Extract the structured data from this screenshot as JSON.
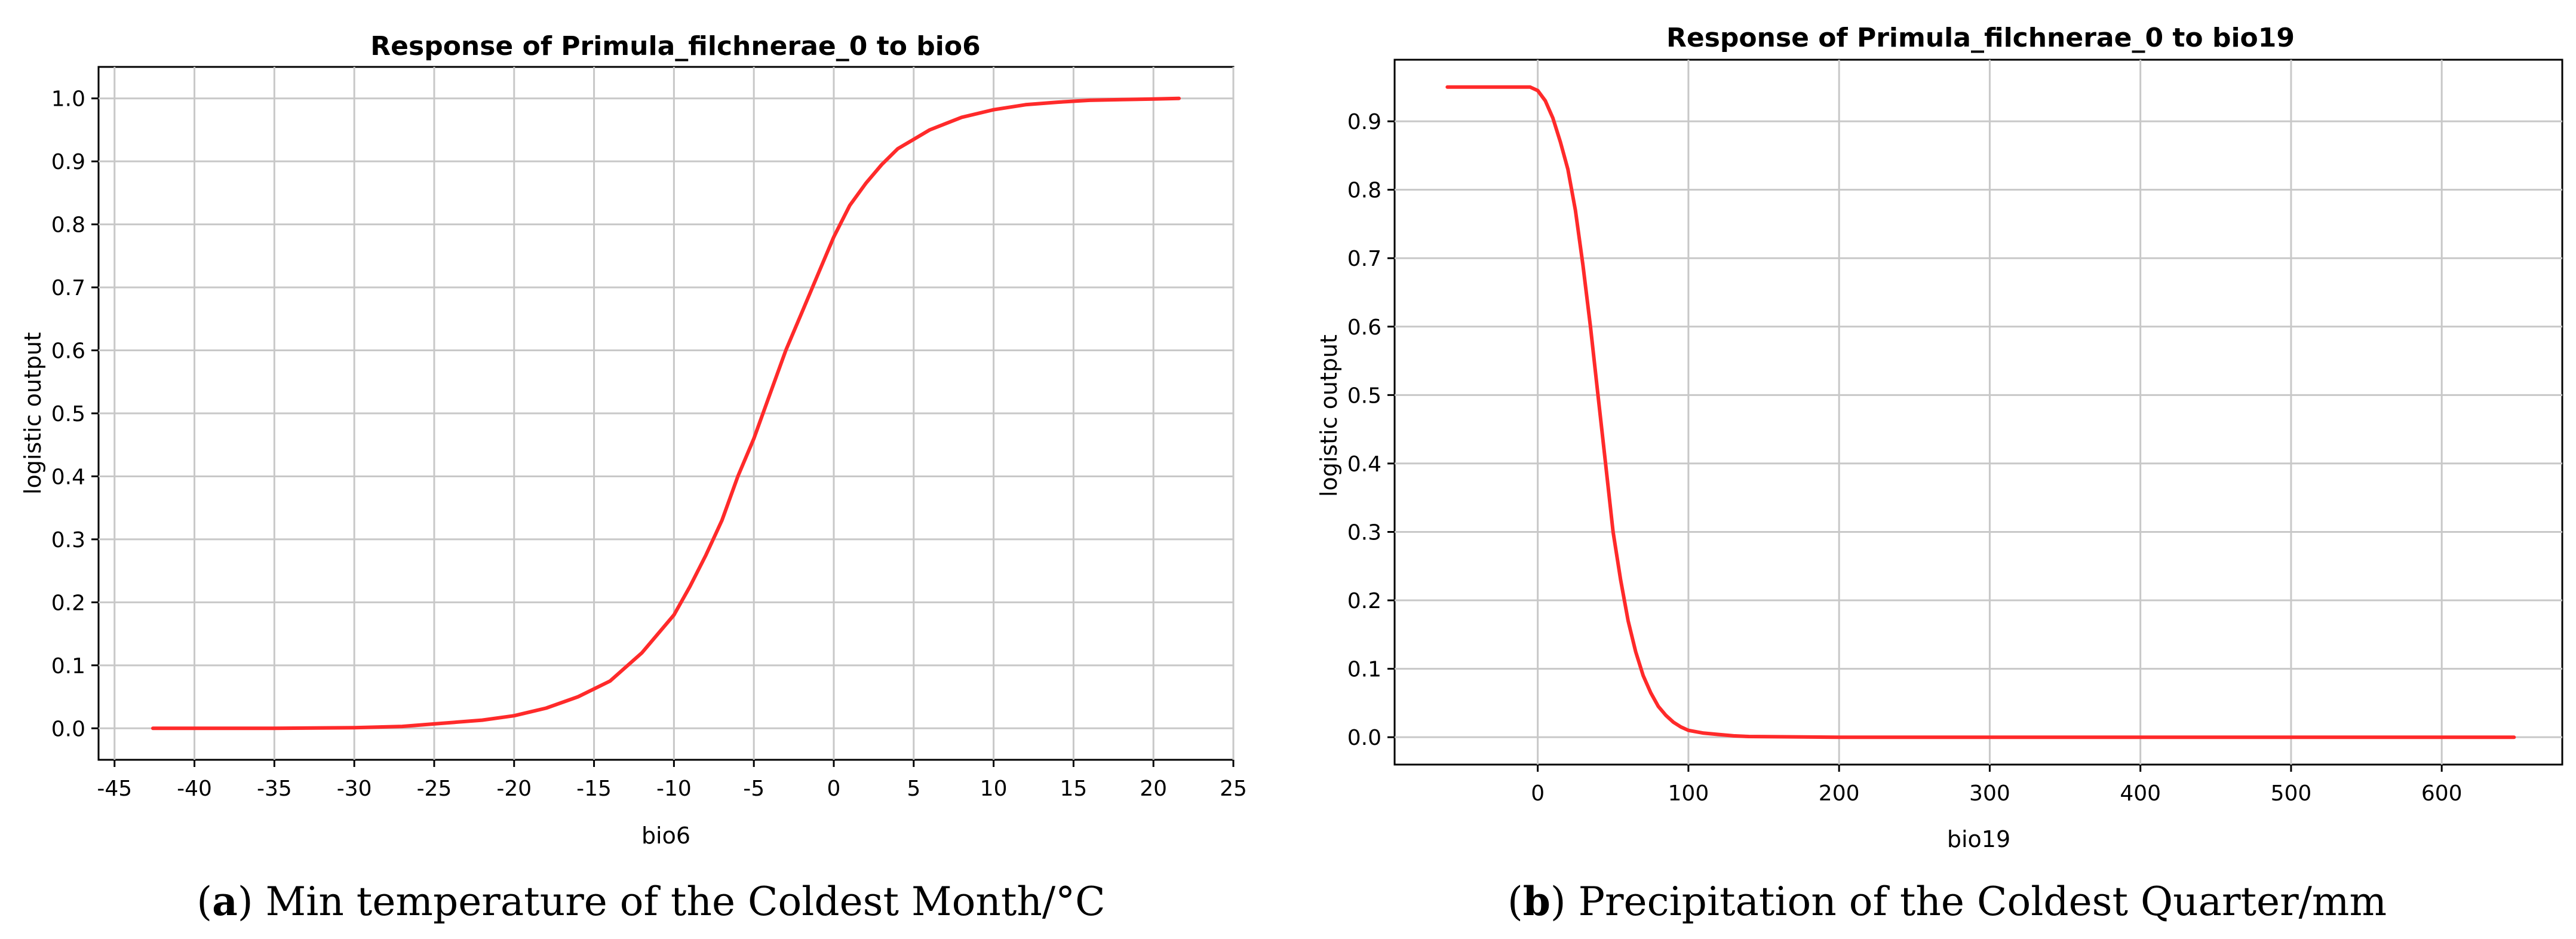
{
  "chart_data": [
    {
      "type": "line",
      "panel_label": "a",
      "caption": "Min temperature of the Coldest Month/°C",
      "title": "Response of Primula_filchnerae_0 to bio6",
      "xlabel": "bio6",
      "ylabel": "logistic output",
      "xlim": [
        -46,
        25
      ],
      "ylim": [
        -0.05,
        1.05
      ],
      "xticks": [
        -45,
        -40,
        -35,
        -30,
        -25,
        -20,
        -15,
        -10,
        -5,
        0,
        5,
        10,
        15,
        20,
        25
      ],
      "yticks": [
        0.0,
        0.1,
        0.2,
        0.3,
        0.4,
        0.5,
        0.6,
        0.7,
        0.8,
        0.9,
        1.0
      ],
      "ytick_decimals": 1,
      "grid": true,
      "line_color": "#ff2a2a",
      "series": [
        {
          "name": "response",
          "x": [
            -42.6,
            -35,
            -30,
            -27,
            -25,
            -22,
            -20,
            -18,
            -16,
            -14,
            -12,
            -10,
            -9,
            -8,
            -7,
            -6,
            -5,
            -4,
            -3,
            -2,
            -1,
            0,
            1,
            2,
            3,
            4,
            5,
            6,
            7,
            8,
            10,
            12,
            14,
            16,
            18,
            20,
            21.6
          ],
          "y": [
            0.0,
            0.0,
            0.001,
            0.003,
            0.007,
            0.013,
            0.02,
            0.032,
            0.05,
            0.075,
            0.12,
            0.18,
            0.225,
            0.275,
            0.33,
            0.4,
            0.46,
            0.53,
            0.6,
            0.66,
            0.72,
            0.78,
            0.83,
            0.865,
            0.895,
            0.92,
            0.935,
            0.95,
            0.96,
            0.97,
            0.982,
            0.99,
            0.994,
            0.997,
            0.998,
            0.999,
            1.0
          ]
        }
      ]
    },
    {
      "type": "line",
      "panel_label": "b",
      "caption": "Precipitation of the Coldest Quarter/mm",
      "title": "Response of Primula_filchnerae_0 to bio19",
      "xlabel": "bio19",
      "ylabel": "logistic output",
      "xlim": [
        -95,
        680
      ],
      "ylim": [
        -0.04,
        0.99
      ],
      "xticks": [
        0,
        100,
        200,
        300,
        400,
        500,
        600
      ],
      "yticks": [
        0.0,
        0.1,
        0.2,
        0.3,
        0.4,
        0.5,
        0.6,
        0.7,
        0.8,
        0.9
      ],
      "ytick_decimals": 1,
      "grid": true,
      "line_color": "#ff2a2a",
      "series": [
        {
          "name": "response",
          "x": [
            -60,
            -5,
            0,
            5,
            10,
            15,
            20,
            25,
            30,
            35,
            40,
            45,
            50,
            55,
            60,
            65,
            70,
            75,
            80,
            85,
            90,
            95,
            100,
            110,
            120,
            130,
            140,
            200,
            300,
            400,
            500,
            600,
            648
          ],
          "y": [
            0.95,
            0.95,
            0.945,
            0.93,
            0.905,
            0.87,
            0.83,
            0.77,
            0.69,
            0.6,
            0.5,
            0.4,
            0.3,
            0.23,
            0.17,
            0.125,
            0.09,
            0.065,
            0.045,
            0.032,
            0.022,
            0.015,
            0.01,
            0.006,
            0.004,
            0.002,
            0.001,
            0.0,
            0.0,
            0.0,
            0.0,
            0.0,
            0.0
          ]
        }
      ]
    }
  ]
}
